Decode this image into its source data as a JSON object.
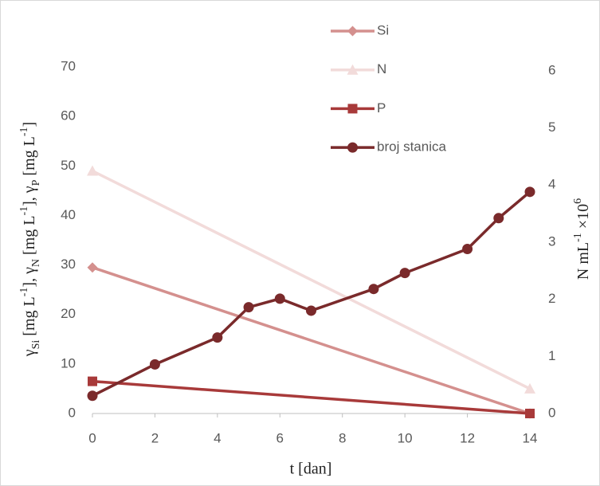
{
  "chart_data": {
    "type": "line",
    "xlabel": "t [dan]",
    "ylabel": [
      {
        "text": "γ"
      },
      {
        "text": "Si",
        "shift": "sub"
      },
      {
        "text": " [mg L"
      },
      {
        "text": "-1",
        "shift": "super"
      },
      {
        "text": "], γ"
      },
      {
        "text": "N",
        "shift": "sub"
      },
      {
        "text": " [mg L"
      },
      {
        "text": "-1",
        "shift": "super"
      },
      {
        "text": "], γ"
      },
      {
        "text": "P",
        "shift": "sub"
      },
      {
        "text": " [mg L"
      },
      {
        "text": "-1",
        "shift": "super"
      },
      {
        "text": "]"
      }
    ],
    "y2label": [
      {
        "text": "N mL"
      },
      {
        "text": "-1",
        "shift": "super"
      },
      {
        "text": " ×10"
      },
      {
        "text": "6",
        "shift": "super"
      }
    ],
    "xlim": [
      0,
      14
    ],
    "xticks": [
      0,
      2,
      4,
      6,
      8,
      10,
      12,
      14
    ],
    "ylim": [
      0,
      75
    ],
    "yticks": [
      0,
      10,
      20,
      30,
      40,
      50,
      60,
      70
    ],
    "y2lim": [
      0,
      6.5
    ],
    "y2ticks": [
      0,
      1,
      2,
      3,
      4,
      5,
      6
    ],
    "legend": "top",
    "series": [
      {
        "name": "Si",
        "color": "#d4908e",
        "marker": "diamond",
        "x": [
          0,
          14
        ],
        "values": [
          29.5,
          0
        ]
      },
      {
        "name": "N",
        "color": "#f2dbda",
        "marker": "triangle",
        "x": [
          0,
          14
        ],
        "values": [
          49,
          5
        ]
      },
      {
        "name": "P",
        "color": "#a83a3a",
        "marker": "square",
        "x": [
          0,
          14
        ],
        "values": [
          6.5,
          0
        ]
      },
      {
        "name": "broj stanica",
        "color": "#7a2a2b",
        "marker": "circle",
        "axis": "y2",
        "x": [
          0,
          2,
          4,
          5,
          6,
          7,
          9,
          10,
          12,
          13,
          14
        ],
        "values": [
          0.31,
          0.86,
          1.33,
          1.86,
          2.01,
          1.8,
          2.18,
          2.46,
          2.88,
          3.42,
          3.88
        ]
      }
    ]
  }
}
